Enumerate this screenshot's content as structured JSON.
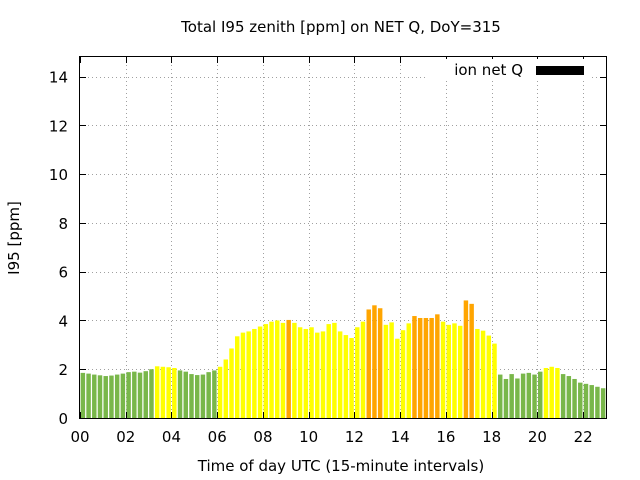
{
  "chart_data": {
    "type": "bar",
    "title": "Total I95 zenith [ppm] on NET Q, DoY=315",
    "xlabel": "Time of day UTC (15-minute intervals)",
    "ylabel": "I95 [ppm]",
    "ylim": [
      0,
      14.8
    ],
    "xlim": [
      0,
      23
    ],
    "yticks": [
      0,
      2,
      4,
      6,
      8,
      10,
      12,
      14
    ],
    "xticks": [
      0,
      2,
      4,
      6,
      8,
      10,
      12,
      14,
      16,
      18,
      20,
      22
    ],
    "xtick_labels": [
      "00",
      "02",
      "04",
      "06",
      "08",
      "10",
      "12",
      "14",
      "16",
      "18",
      "20",
      "22"
    ],
    "grid": true,
    "interval_hours": 0.25,
    "legend": {
      "position": "top-right",
      "entries": [
        {
          "name": "ion net Q",
          "color": "#000000"
        }
      ]
    },
    "colors": {
      "low": "#79b74a",
      "mid": "#ffff00",
      "high": "#ffa500"
    },
    "series": [
      {
        "name": "ion net Q",
        "values": [
          1.85,
          1.82,
          1.78,
          1.75,
          1.72,
          1.74,
          1.78,
          1.82,
          1.88,
          1.9,
          1.86,
          1.92,
          2.0,
          2.12,
          2.1,
          2.08,
          2.05,
          1.95,
          1.9,
          1.8,
          1.76,
          1.78,
          1.88,
          1.95,
          2.1,
          2.4,
          2.85,
          3.35,
          3.5,
          3.55,
          3.65,
          3.75,
          3.85,
          3.95,
          4.0,
          3.9,
          4.02,
          3.9,
          3.72,
          3.65,
          3.72,
          3.5,
          3.55,
          3.85,
          3.9,
          3.55,
          3.4,
          3.28,
          3.72,
          3.95,
          4.45,
          4.62,
          4.5,
          3.82,
          3.92,
          3.25,
          3.6,
          3.88,
          4.18,
          4.1,
          4.1,
          4.1,
          4.25,
          3.95,
          3.82,
          3.88,
          3.78,
          4.82,
          4.68,
          3.65,
          3.58,
          3.38,
          3.05,
          1.78,
          1.6,
          1.8,
          1.62,
          1.82,
          1.85,
          1.78,
          1.9,
          2.05,
          2.1,
          2.05,
          1.8,
          1.72,
          1.6,
          1.45,
          1.4,
          1.35,
          1.28,
          1.22
        ],
        "levels": [
          "low",
          "low",
          "low",
          "low",
          "low",
          "low",
          "low",
          "low",
          "low",
          "low",
          "low",
          "low",
          "low",
          "mid",
          "mid",
          "mid",
          "mid",
          "low",
          "low",
          "low",
          "low",
          "low",
          "low",
          "low",
          "mid",
          "mid",
          "mid",
          "mid",
          "mid",
          "mid",
          "mid",
          "mid",
          "mid",
          "mid",
          "mid",
          "mid",
          "high",
          "mid",
          "mid",
          "mid",
          "mid",
          "mid",
          "mid",
          "mid",
          "mid",
          "mid",
          "mid",
          "mid",
          "mid",
          "mid",
          "high",
          "high",
          "high",
          "mid",
          "mid",
          "mid",
          "mid",
          "mid",
          "high",
          "high",
          "high",
          "high",
          "high",
          "mid",
          "mid",
          "mid",
          "mid",
          "high",
          "high",
          "mid",
          "mid",
          "mid",
          "mid",
          "low",
          "low",
          "low",
          "low",
          "low",
          "low",
          "low",
          "low",
          "mid",
          "mid",
          "mid",
          "low",
          "low",
          "low",
          "low",
          "low",
          "low",
          "low",
          "low"
        ]
      }
    ]
  }
}
